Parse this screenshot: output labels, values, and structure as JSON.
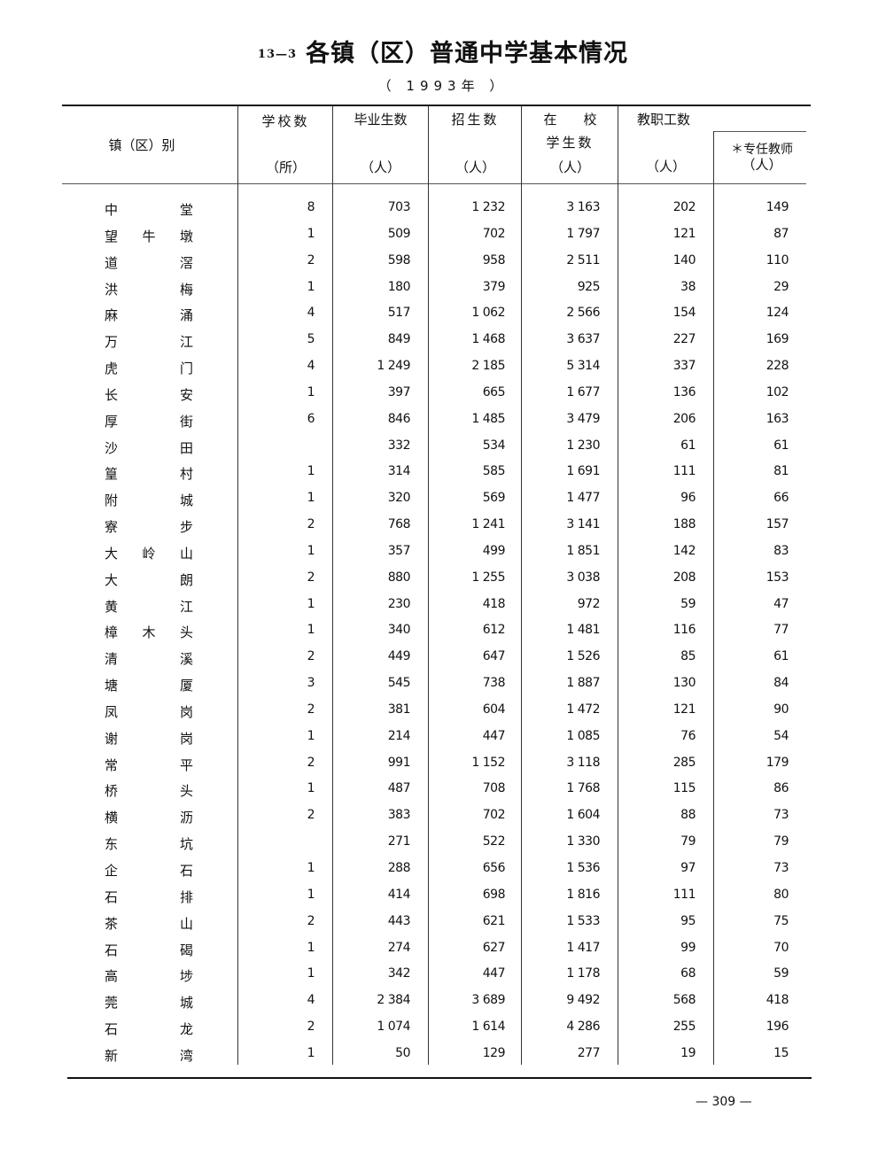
{
  "title": {
    "number": "13—3",
    "text": "各镇（区）普通中学基本情况",
    "year": "（ 1993年 ）"
  },
  "columns": {
    "region": "镇（区）别",
    "schools": {
      "label": "学校数",
      "unit": "（所）"
    },
    "graduates": {
      "label": "毕业生数",
      "unit": "（人）"
    },
    "enrollment": {
      "label": "招生数",
      "unit": "（人）"
    },
    "students": {
      "label1": "在　　校",
      "label2": "学生数",
      "unit": "（人）"
    },
    "staff": {
      "label": "教职工数",
      "unit": "（人）"
    },
    "teachers": {
      "label": "＊专任教师",
      "unit": "（人）"
    }
  },
  "rows": [
    {
      "name": "中堂",
      "schools": "8",
      "graduates": "703",
      "enrollment": "1 232",
      "students": "3 163",
      "staff": "202",
      "teachers": "149"
    },
    {
      "name": "望牛墩",
      "schools": "1",
      "graduates": "509",
      "enrollment": "702",
      "students": "1 797",
      "staff": "121",
      "teachers": "87"
    },
    {
      "name": "道滘",
      "schools": "2",
      "graduates": "598",
      "enrollment": "958",
      "students": "2 511",
      "staff": "140",
      "teachers": "110"
    },
    {
      "name": "洪梅",
      "schools": "1",
      "graduates": "180",
      "enrollment": "379",
      "students": "925",
      "staff": "38",
      "teachers": "29"
    },
    {
      "name": "麻涌",
      "schools": "4",
      "graduates": "517",
      "enrollment": "1 062",
      "students": "2 566",
      "staff": "154",
      "teachers": "124"
    },
    {
      "name": "万江",
      "schools": "5",
      "graduates": "849",
      "enrollment": "1 468",
      "students": "3 637",
      "staff": "227",
      "teachers": "169"
    },
    {
      "name": "虎门",
      "schools": "4",
      "graduates": "1 249",
      "enrollment": "2 185",
      "students": "5 314",
      "staff": "337",
      "teachers": "228"
    },
    {
      "name": "长安",
      "schools": "1",
      "graduates": "397",
      "enrollment": "665",
      "students": "1 677",
      "staff": "136",
      "teachers": "102"
    },
    {
      "name": "厚街",
      "schools": "6",
      "graduates": "846",
      "enrollment": "1 485",
      "students": "3 479",
      "staff": "206",
      "teachers": "163"
    },
    {
      "name": "沙田",
      "schools": "",
      "graduates": "332",
      "enrollment": "534",
      "students": "1 230",
      "staff": "61",
      "teachers": "61"
    },
    {
      "name": "篁村",
      "schools": "1",
      "graduates": "314",
      "enrollment": "585",
      "students": "1 691",
      "staff": "111",
      "teachers": "81"
    },
    {
      "name": "附城",
      "schools": "1",
      "graduates": "320",
      "enrollment": "569",
      "students": "1 477",
      "staff": "96",
      "teachers": "66"
    },
    {
      "name": "寮步",
      "schools": "2",
      "graduates": "768",
      "enrollment": "1 241",
      "students": "3 141",
      "staff": "188",
      "teachers": "157"
    },
    {
      "name": "大岭山",
      "schools": "1",
      "graduates": "357",
      "enrollment": "499",
      "students": "1 851",
      "staff": "142",
      "teachers": "83"
    },
    {
      "name": "大朗",
      "schools": "2",
      "graduates": "880",
      "enrollment": "1 255",
      "students": "3 038",
      "staff": "208",
      "teachers": "153"
    },
    {
      "name": "黄江",
      "schools": "1",
      "graduates": "230",
      "enrollment": "418",
      "students": "972",
      "staff": "59",
      "teachers": "47"
    },
    {
      "name": "樟木头",
      "schools": "1",
      "graduates": "340",
      "enrollment": "612",
      "students": "1 481",
      "staff": "116",
      "teachers": "77"
    },
    {
      "name": "清溪",
      "schools": "2",
      "graduates": "449",
      "enrollment": "647",
      "students": "1 526",
      "staff": "85",
      "teachers": "61"
    },
    {
      "name": "塘厦",
      "schools": "3",
      "graduates": "545",
      "enrollment": "738",
      "students": "1 887",
      "staff": "130",
      "teachers": "84"
    },
    {
      "name": "凤岗",
      "schools": "2",
      "graduates": "381",
      "enrollment": "604",
      "students": "1 472",
      "staff": "121",
      "teachers": "90"
    },
    {
      "name": "谢岗",
      "schools": "1",
      "graduates": "214",
      "enrollment": "447",
      "students": "1 085",
      "staff": "76",
      "teachers": "54"
    },
    {
      "name": "常平",
      "schools": "2",
      "graduates": "991",
      "enrollment": "1 152",
      "students": "3 118",
      "staff": "285",
      "teachers": "179"
    },
    {
      "name": "桥头",
      "schools": "1",
      "graduates": "487",
      "enrollment": "708",
      "students": "1 768",
      "staff": "115",
      "teachers": "86"
    },
    {
      "name": "横沥",
      "schools": "2",
      "graduates": "383",
      "enrollment": "702",
      "students": "1 604",
      "staff": "88",
      "teachers": "73"
    },
    {
      "name": "东坑",
      "schools": "",
      "graduates": "271",
      "enrollment": "522",
      "students": "1 330",
      "staff": "79",
      "teachers": "79"
    },
    {
      "name": "企石",
      "schools": "1",
      "graduates": "288",
      "enrollment": "656",
      "students": "1 536",
      "staff": "97",
      "teachers": "73"
    },
    {
      "name": "石排",
      "schools": "1",
      "graduates": "414",
      "enrollment": "698",
      "students": "1 816",
      "staff": "111",
      "teachers": "80"
    },
    {
      "name": "茶山",
      "schools": "2",
      "graduates": "443",
      "enrollment": "621",
      "students": "1 533",
      "staff": "95",
      "teachers": "75"
    },
    {
      "name": "石碣",
      "schools": "1",
      "graduates": "274",
      "enrollment": "627",
      "students": "1 417",
      "staff": "99",
      "teachers": "70"
    },
    {
      "name": "高埗",
      "schools": "1",
      "graduates": "342",
      "enrollment": "447",
      "students": "1 178",
      "staff": "68",
      "teachers": "59"
    },
    {
      "name": "莞城",
      "schools": "4",
      "graduates": "2 384",
      "enrollment": "3 689",
      "students": "9 492",
      "staff": "568",
      "teachers": "418"
    },
    {
      "name": "石龙",
      "schools": "2",
      "graduates": "1 074",
      "enrollment": "1 614",
      "students": "4 286",
      "staff": "255",
      "teachers": "196"
    },
    {
      "name": "新湾",
      "schools": "1",
      "graduates": "50",
      "enrollment": "129",
      "students": "277",
      "staff": "19",
      "teachers": "15"
    }
  ],
  "page_number": "— 309 —"
}
